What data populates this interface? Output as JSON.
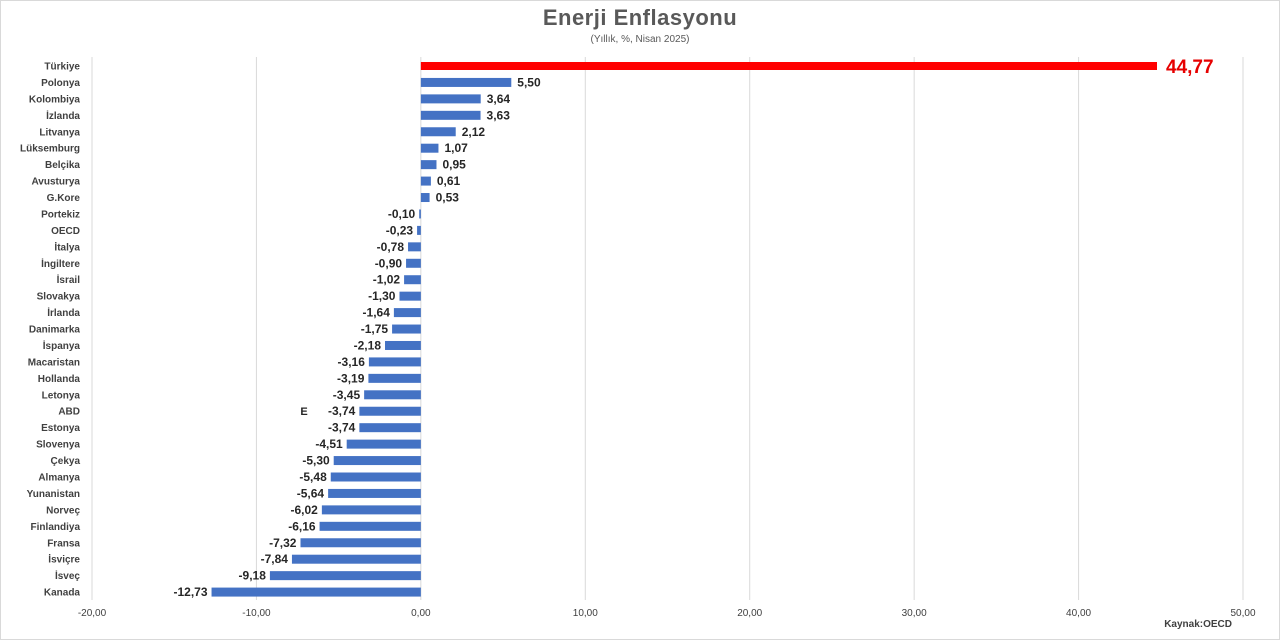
{
  "chart_data": {
    "type": "bar",
    "orientation": "horizontal",
    "title": "Enerji Enflasyonu",
    "subtitle": "(Yıllık, %, Nisan 2025)",
    "source": "Kaynak:OECD",
    "categories": [
      "Türkiye",
      "Polonya",
      "Kolombiya",
      "İzlanda",
      "Litvanya",
      "Lüksemburg",
      "Belçika",
      "Avusturya",
      "G.Kore",
      "Portekiz",
      "OECD",
      "İtalya",
      "İngiltere",
      "İsrail",
      "Slovakya",
      "İrlanda",
      "Danimarka",
      "İspanya",
      "Macaristan",
      "Hollanda",
      "Letonya",
      "ABD",
      "Estonya",
      "Slovenya",
      "Çekya",
      "Almanya",
      "Yunanistan",
      "Norveç",
      "Finlandiya",
      "Fransa",
      "İsviçre",
      "İsveç",
      "Kanada"
    ],
    "values": [
      44.77,
      5.5,
      3.64,
      3.63,
      2.12,
      1.07,
      0.95,
      0.61,
      0.53,
      -0.1,
      -0.23,
      -0.78,
      -0.9,
      -1.02,
      -1.3,
      -1.64,
      -1.75,
      -2.18,
      -3.16,
      -3.19,
      -3.45,
      -3.74,
      -3.74,
      -4.51,
      -5.3,
      -5.48,
      -5.64,
      -6.02,
      -6.16,
      -7.32,
      -7.84,
      -9.18,
      -12.73
    ],
    "value_labels": [
      "44,77",
      "5,50",
      "3,64",
      "3,63",
      "2,12",
      "1,07",
      "0,95",
      "0,61",
      "0,53",
      "-0,10",
      "-0,23",
      "-0,78",
      "-0,90",
      "-1,02",
      "-1,30",
      "-1,64",
      "-1,75",
      "-2,18",
      "-3,16",
      "-3,19",
      "-3,45",
      "-3,74",
      "-3,74",
      "-4,51",
      "-5,30",
      "-5,48",
      "-5,64",
      "-6,02",
      "-6,16",
      "-7,32",
      "-7,84",
      "-9,18",
      "-12,73"
    ],
    "xlim": [
      -20,
      50
    ],
    "xticks": [
      -20,
      -10,
      0,
      10,
      20,
      30,
      40,
      50
    ],
    "xtick_labels": [
      "-20,00",
      "-10,00",
      "0,00",
      "10,00",
      "20,00",
      "30,00",
      "40,00",
      "50,00"
    ],
    "grid": "vertical",
    "legend": "none",
    "highlight_index": 0,
    "bar_color": "#4472c4",
    "highlight_color": "#ff0000",
    "stray_annotation": {
      "text": "E",
      "category": "ABD"
    }
  }
}
